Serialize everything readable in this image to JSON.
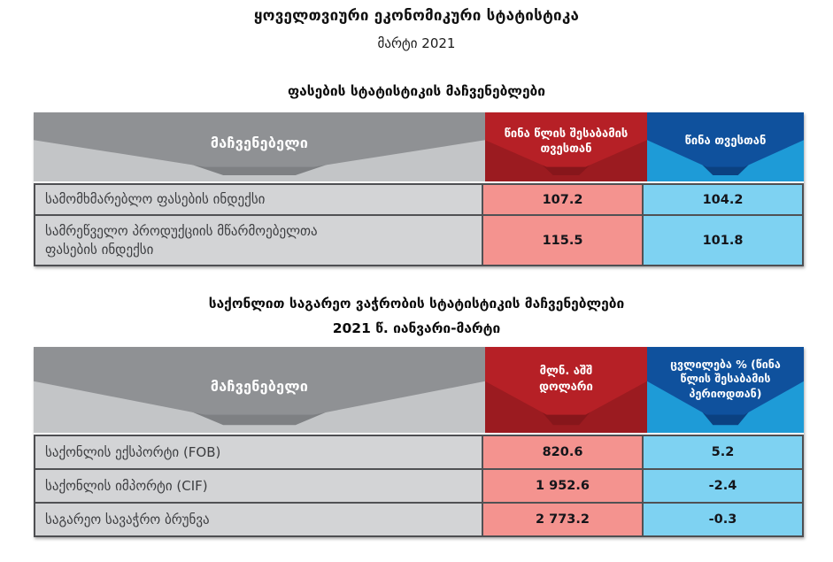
{
  "page": {
    "title": "ყოველთვიური ეკონომიკური სტატისტიკა",
    "subtitle": "მარტი 2021"
  },
  "colors": {
    "header_gray_band": "#8f9194",
    "header_gray_base": "#c3c5c7",
    "header_red_band": "#b62026",
    "header_red_base": "#9b1b20",
    "header_blue_band": "#0f519d",
    "header_blue_base": "#1e9bd7",
    "cell_pink": "#f4938f",
    "cell_lightblue": "#7ed2f2",
    "cell_label_gray": "#d3d4d6"
  },
  "tables": [
    {
      "section_title": "ფასების სტატისტიკის მაჩვენებლები",
      "indicator_header": "მაჩვენებელი",
      "col1_header": "წინა წლის შესაბამის\nთვესთან",
      "col2_header": "წინა თვესთან",
      "rows": [
        {
          "label": "სამომხმარებლო ფასების ინდექსი",
          "col1": "107.2",
          "col2": "104.2"
        },
        {
          "label": "სამრეწველო პროდუქციის მწარმოებელთა\nფასების ინდექსი",
          "col1": "115.5",
          "col2": "101.8"
        }
      ]
    },
    {
      "section_title": "საქონლით საგარეო ვაჭრობის სტატისტიკის მაჩვენებლები",
      "section_subtitle": "2021 წ. იანვარი-მარტი",
      "indicator_header": "მაჩვენებელი",
      "col1_header": "მლნ. აშშ\nდოლარი",
      "col2_header": "ცვლილება % (წინა\nწლის შესაბამის\nპერიოდთან)",
      "rows": [
        {
          "label": "საქონლის ექსპორტი (FOB)",
          "col1": "820.6",
          "col2": "5.2"
        },
        {
          "label": "საქონლის იმპორტი (CIF)",
          "col1": "1 952.6",
          "col2": "-2.4"
        },
        {
          "label": "საგარეო სავაჭრო ბრუნვა",
          "col1": "2 773.2",
          "col2": "-0.3"
        }
      ]
    }
  ]
}
